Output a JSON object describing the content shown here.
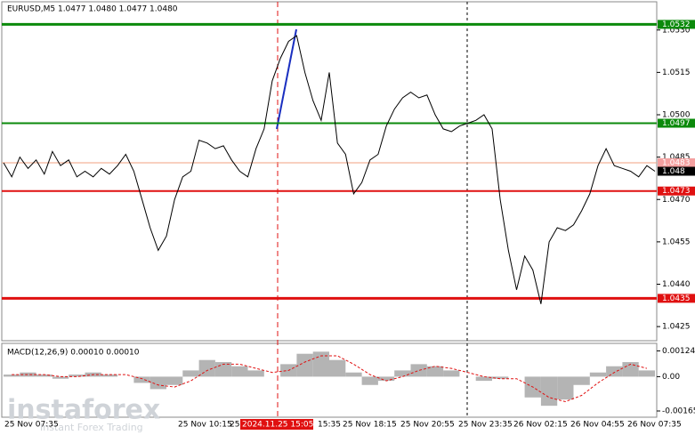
{
  "chart_data": {
    "type": "line",
    "title": "EURUSD,M5  1.0477 1.0480 1.0477 1.0480",
    "color": "#000000",
    "values": [
      1.0483,
      1.0478,
      1.0485,
      1.0481,
      1.0484,
      1.0479,
      1.0487,
      1.0482,
      1.0484,
      1.0478,
      1.048,
      1.0478,
      1.0481,
      1.0479,
      1.0482,
      1.0486,
      1.048,
      1.047,
      1.046,
      1.0452,
      1.0457,
      1.047,
      1.0478,
      1.048,
      1.0491,
      1.049,
      1.0488,
      1.0489,
      1.0484,
      1.048,
      1.0478,
      1.0488,
      1.0495,
      1.0512,
      1.052,
      1.0526,
      1.0528,
      1.0515,
      1.0505,
      1.0498,
      1.0515,
      1.049,
      1.0486,
      1.0472,
      1.0476,
      1.0484,
      1.0486,
      1.0496,
      1.0502,
      1.0506,
      1.0508,
      1.0506,
      1.0507,
      1.05,
      1.0495,
      1.0494,
      1.0496,
      1.0497,
      1.0498,
      1.05,
      1.0495,
      1.047,
      1.0452,
      1.0438,
      1.045,
      1.0445,
      1.0433,
      1.0455,
      1.046,
      1.0459,
      1.0461,
      1.0466,
      1.0472,
      1.0482,
      1.0488,
      1.0482,
      1.0481,
      1.048,
      1.0478,
      1.0482,
      1.048
    ],
    "ylim": [
      1.042,
      1.054
    ],
    "yticks": [
      {
        "value": 1.053,
        "label": "1.0530"
      },
      1.0515,
      {
        "value": 1.05,
        "label": "1.0500"
      },
      1.0485,
      {
        "value": 1.047,
        "label": "1.0470"
      },
      1.0455,
      {
        "value": 1.044,
        "label": "1.0440"
      },
      1.0425
    ],
    "levels": [
      {
        "value": 1.0532,
        "color": "#0b8a0b",
        "style": "thick"
      },
      {
        "value": 1.0497,
        "color": "#0b8a0b",
        "style": "medium"
      },
      {
        "value": 1.0483,
        "color": "#f0a080",
        "style": "thin"
      },
      {
        "value": 1.048,
        "color": "#000000",
        "style": "none"
      },
      {
        "value": 1.0473,
        "color": "#e01010",
        "style": "medium"
      },
      {
        "value": 1.0435,
        "color": "#e01010",
        "style": "thick"
      }
    ],
    "x_labels": [
      "25 Nov 07:35",
      "25 Nov 10:15",
      "25",
      "2024.11.25 15:05",
      "15:35",
      "25 Nov 18:15",
      "25 Nov 20:55",
      "25 Nov 23:35",
      "26 Nov 02:15",
      "26 Nov 04:55",
      "26 Nov 07:35"
    ],
    "macd": {
      "title": "MACD(12,26,9) 0.00010 0.00010",
      "ylim": [
        -0.00195,
        0.0016
      ],
      "yticks": [
        0.00124,
        {
          "value": 0,
          "label": "0.00"
        },
        -0.00165
      ],
      "histogram": [
        0.0001,
        0.0002,
        0.0001,
        -0.0001,
        0.0001,
        0.0002,
        0.0001,
        0,
        -0.0003,
        -0.0006,
        -0.0004,
        0.0003,
        0.0008,
        0.0007,
        0.0005,
        0.0003,
        0,
        0.0006,
        0.0011,
        0.0012,
        0.0008,
        0.0002,
        -0.0004,
        -0.0002,
        0.0003,
        0.0006,
        0.0005,
        0.0003,
        0,
        -0.0002,
        -0.0001,
        0,
        -0.001,
        -0.0014,
        -0.0011,
        -0.0004,
        0.0002,
        0.0005,
        0.0007,
        0.0003
      ],
      "signal": [
        0.0001,
        0.0001,
        0.0001,
        0,
        0,
        0.0001,
        0.0001,
        0.0001,
        -0.0001,
        -0.0004,
        -0.0005,
        -0.0002,
        0.0003,
        0.0006,
        0.0006,
        0.0004,
        0.0002,
        0.0003,
        0.0007,
        0.001,
        0.001,
        0.0006,
        0.0001,
        -0.0002,
        0,
        0.0003,
        0.0005,
        0.0004,
        0.0002,
        0,
        -0.0001,
        -0.0001,
        -0.0005,
        -0.001,
        -0.0012,
        -0.0009,
        -0.0003,
        0.0002,
        0.0006,
        0.0004
      ],
      "histogram_color": "#b4b4b4",
      "signal_color": "#e01010"
    },
    "watermark": {
      "brand": "instaforex",
      "tagline": "Instant Forex Trading"
    }
  }
}
